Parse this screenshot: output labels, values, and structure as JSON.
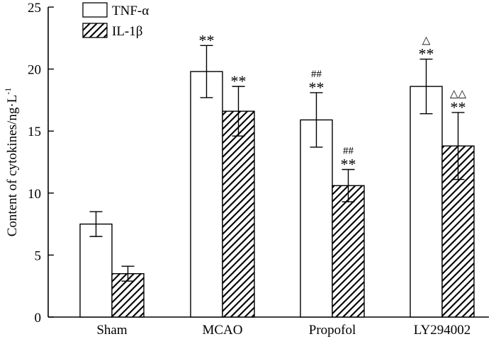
{
  "chart_data": {
    "type": "bar",
    "title": "",
    "xlabel": "",
    "ylabel": "Content of cytokines/ng·L",
    "ylabel_superscript": "-1",
    "ylim": [
      0,
      25
    ],
    "yticks": [
      0,
      5,
      10,
      15,
      20,
      25
    ],
    "categories": [
      "Sham",
      "MCAO",
      "Propofol",
      "LY294002"
    ],
    "series": [
      {
        "name": "TNF-α",
        "fill": "open",
        "values": [
          7.5,
          19.8,
          15.9,
          18.6
        ],
        "errors": [
          1.0,
          2.1,
          2.2,
          2.2
        ],
        "annotations": [
          [],
          [
            "**"
          ],
          [
            "**",
            "##"
          ],
          [
            "**",
            "△"
          ]
        ]
      },
      {
        "name": "IL-1β",
        "fill": "hatched",
        "values": [
          3.5,
          16.6,
          10.6,
          13.8
        ],
        "errors": [
          0.6,
          2.0,
          1.3,
          2.7
        ],
        "annotations": [
          [],
          [
            "**"
          ],
          [
            "**",
            "##"
          ],
          [
            "**",
            "△△"
          ]
        ]
      }
    ],
    "legend_position": "top-left",
    "grid": false
  },
  "colors": {
    "axis": "#000000",
    "bar_open": "#ffffff",
    "hatch": "#000000"
  }
}
